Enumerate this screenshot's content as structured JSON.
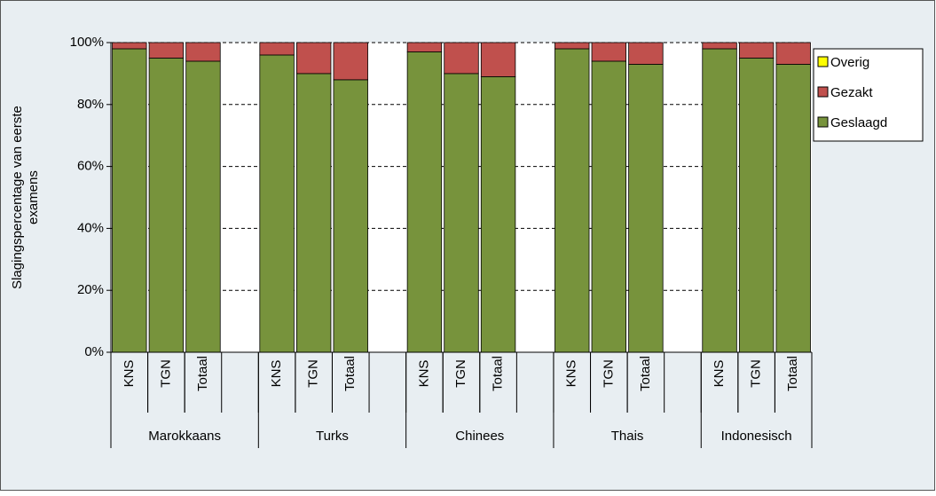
{
  "chart_data": {
    "type": "stacked-bar",
    "y_label": [
      "Slagingspercentage van eerste",
      "examens"
    ],
    "categories": [
      "KNS",
      "TGN",
      "Totaal",
      null,
      "KNS",
      "TGN",
      "Totaal",
      null,
      "KNS",
      "TGN",
      "Totaal",
      null,
      "KNS",
      "TGN",
      "Totaal",
      null,
      "KNS",
      "TGN",
      "Totaal"
    ],
    "group_labels": [
      "Marokkaans",
      "Turks",
      "Chinees",
      "Thais",
      "Indonesisch"
    ],
    "series": [
      {
        "name": "Geslaagd",
        "color": "#77933c",
        "values": [
          98,
          95,
          94,
          null,
          96,
          90,
          88,
          null,
          97,
          90,
          89,
          null,
          98,
          94,
          93,
          null,
          98,
          95,
          93
        ]
      },
      {
        "name": "Gezakt",
        "color": "#c0504d",
        "values": [
          2,
          5,
          6,
          null,
          4,
          10,
          12,
          null,
          3,
          10,
          11,
          null,
          2,
          6,
          7,
          null,
          2,
          5,
          7
        ]
      },
      {
        "name": "Overig",
        "color": "#ffff00",
        "values": [
          0,
          0,
          0,
          null,
          0,
          0,
          0,
          null,
          0,
          0,
          0,
          null,
          0,
          0,
          0,
          null,
          0,
          0,
          0
        ]
      }
    ],
    "ylim": [
      0,
      100
    ],
    "yticks": [
      {
        "value": 0,
        "label": "0%"
      },
      {
        "value": 20,
        "label": "20%"
      },
      {
        "value": 40,
        "label": "40%"
      },
      {
        "value": 60,
        "label": "60%"
      },
      {
        "value": 80,
        "label": "80%"
      },
      {
        "value": 100,
        "label": "100%"
      }
    ],
    "grid": true,
    "legend": "right"
  }
}
